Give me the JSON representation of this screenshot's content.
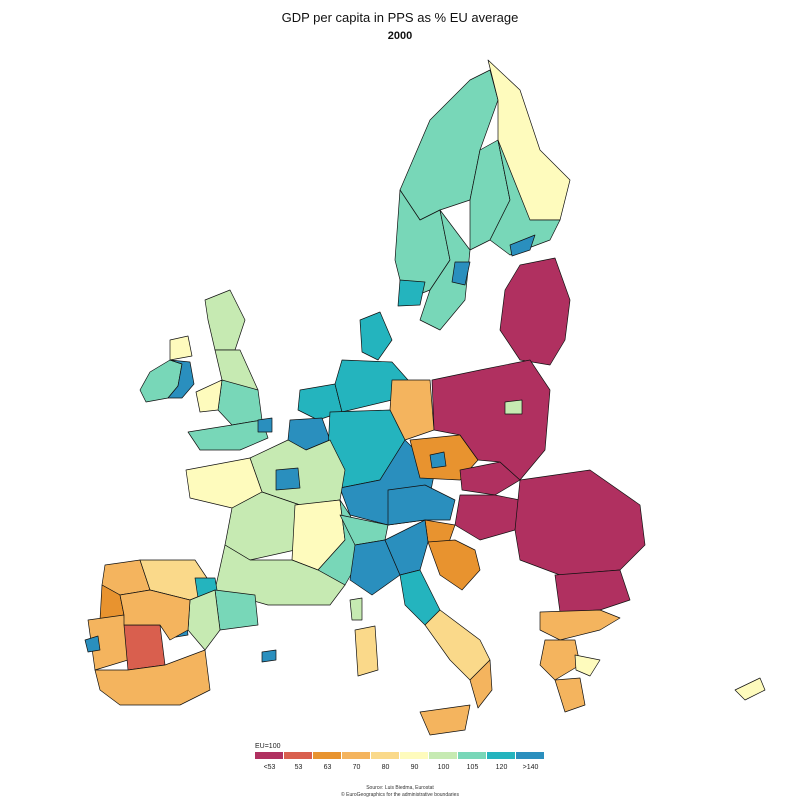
{
  "title": "GDP per capita in PPS as % EU average",
  "subtitle": "2000",
  "legend": {
    "note": "EU=100",
    "classes": [
      {
        "label": "<53",
        "color": "#b03060"
      },
      {
        "label": "53",
        "color": "#d95f4e"
      },
      {
        "label": "63",
        "color": "#e8932f"
      },
      {
        "label": "70",
        "color": "#f4b45e"
      },
      {
        "label": "80",
        "color": "#fad98a"
      },
      {
        "label": "90",
        "color": "#fefbbd"
      },
      {
        "label": "100",
        "color": "#c6eab2"
      },
      {
        "label": "105",
        "color": "#78d7b8"
      },
      {
        "label": "120",
        "color": "#24b4be"
      },
      {
        "label": ">140",
        "color": "#2a8fbe"
      }
    ]
  },
  "source_lines": [
    "Source: Luis Biedma, Eurostat",
    "© EuroGeographics for the administrative boundaries"
  ],
  "colors": {
    "background": "#ffffff",
    "border": "#111111"
  }
}
